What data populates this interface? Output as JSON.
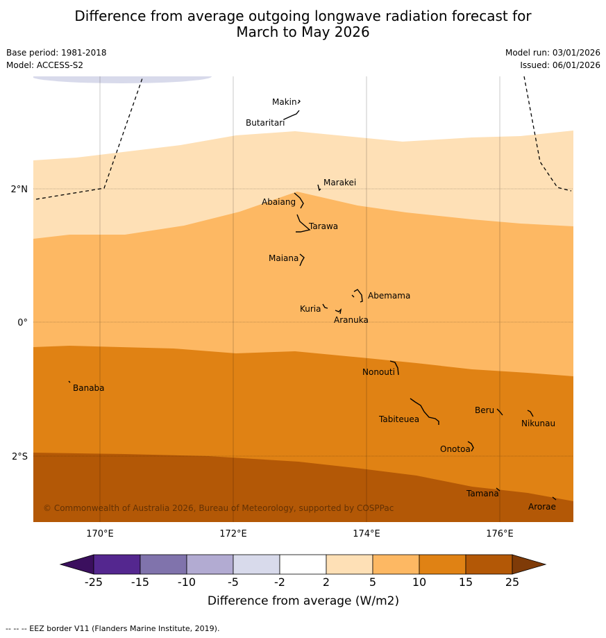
{
  "header": {
    "title_line1": "Difference from average outgoing longwave radiation forecast for",
    "title_line2": "March to May 2026",
    "base_period": "Base period: 1981-2018",
    "model": "Model: ACCESS-S2",
    "model_run": "Model run: 03/01/2026",
    "issued": "Issued: 06/01/2026"
  },
  "map": {
    "lon_labels": [
      "170°E",
      "172°E",
      "174°E",
      "176°E"
    ],
    "lat_labels": [
      "2°N",
      "0°",
      "2°S"
    ],
    "copyright": "© Commonwealth of Australia 2026, Bureau of Meteorology, supported by COSPPac",
    "islands": [
      "Makin",
      "Butaritari",
      "Marakei",
      "Abaiang",
      "Tarawa",
      "Maiana",
      "Abemama",
      "Kuria",
      "Aranuka",
      "Nonouti",
      "Banaba",
      "Tabiteuea",
      "Beru",
      "Nikunau",
      "Onotoa",
      "Tamana",
      "Arorae"
    ]
  },
  "legend": {
    "title": "Difference from average (W/m2)",
    "ticks": [
      "-25",
      "-15",
      "-10",
      "-5",
      "-2",
      "2",
      "5",
      "10",
      "15",
      "25"
    ],
    "colors": [
      "#3b0f5e",
      "#54278f",
      "#8073ac",
      "#b2abd2",
      "#d8daeb",
      "#ffffff",
      "#fee0b6",
      "#fdb863",
      "#e08214",
      "#b35806",
      "#7f3b08"
    ]
  },
  "footnote": "--  --  -- EEZ border V11 (Flanders Marine Institute, 2019)."
}
